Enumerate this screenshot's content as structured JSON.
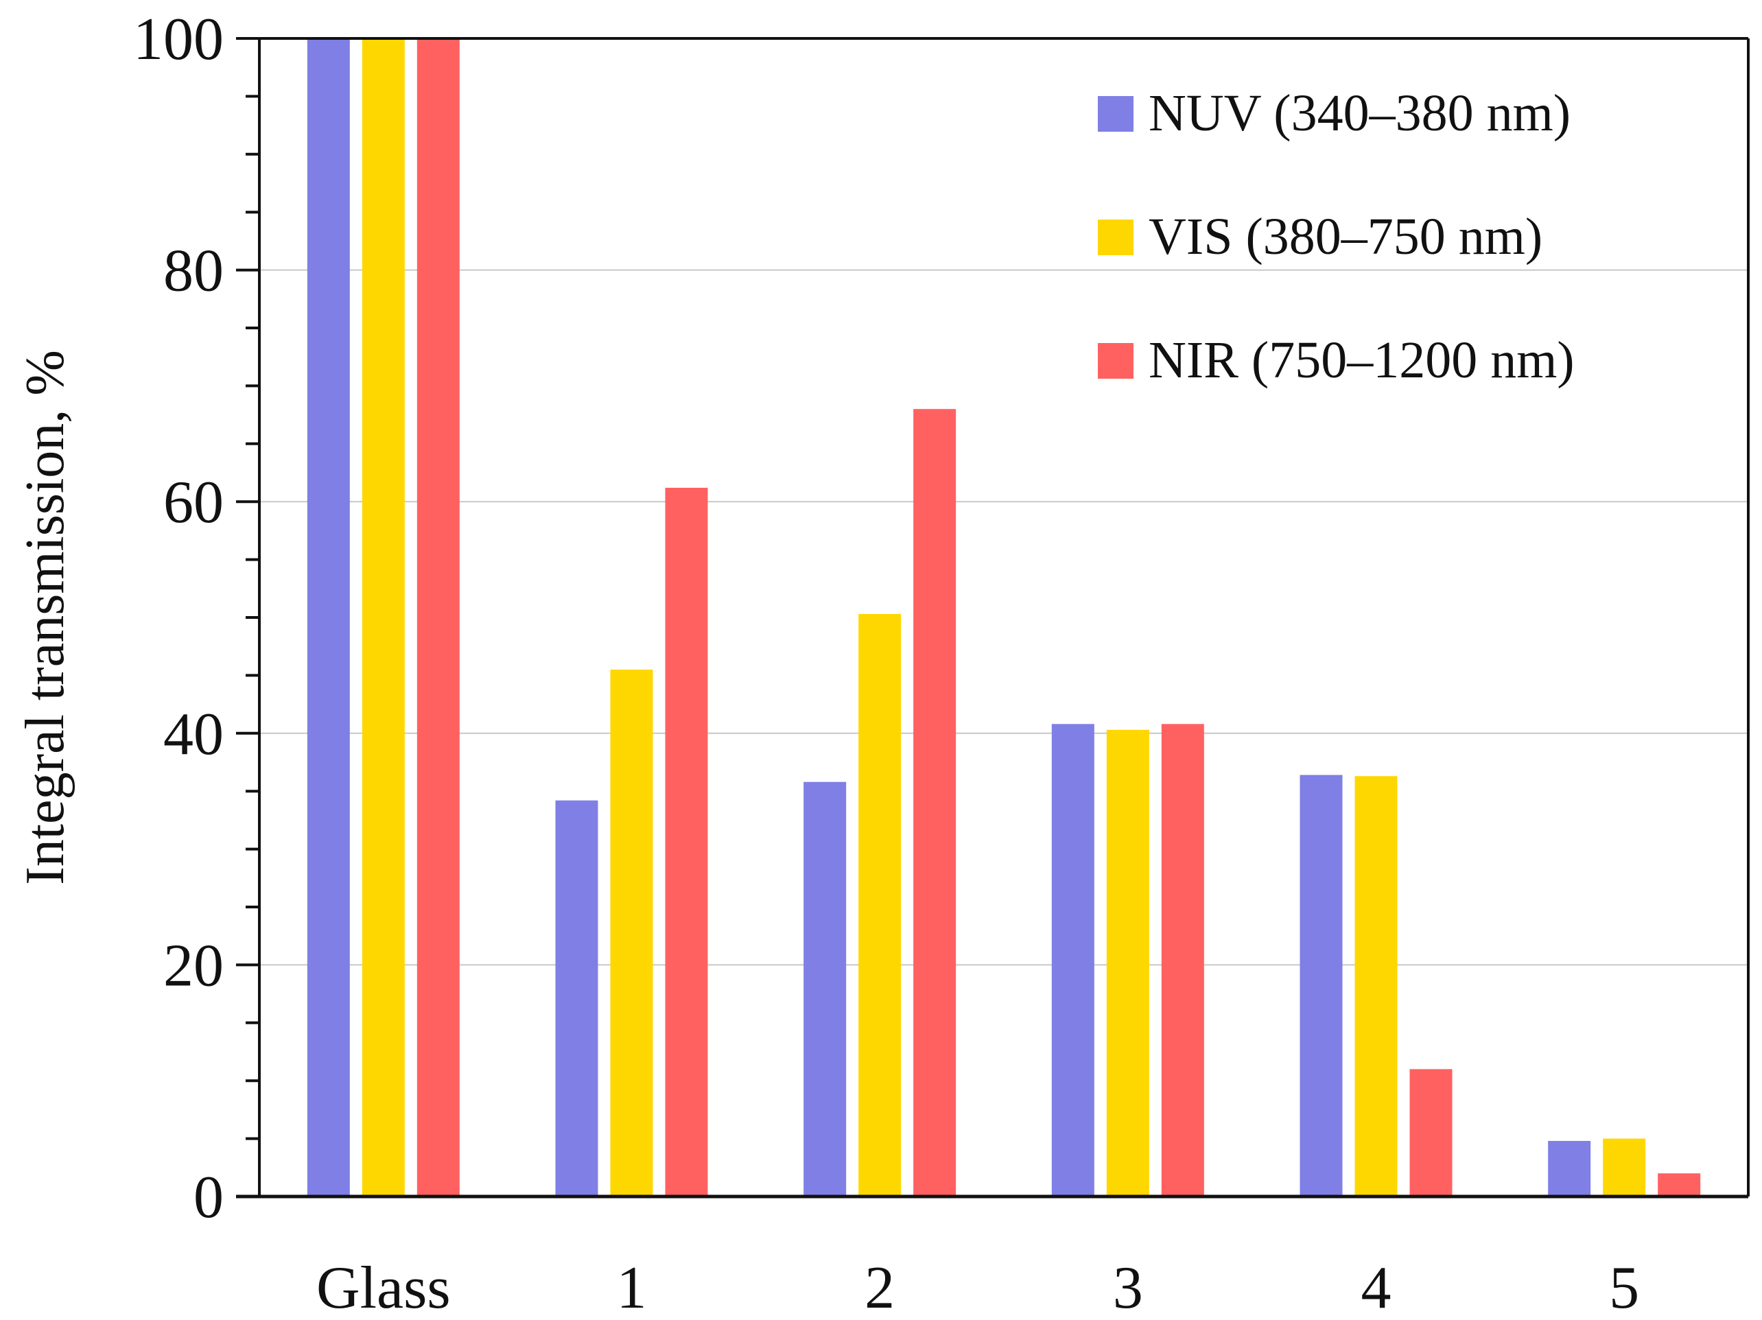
{
  "chart_data": {
    "type": "bar",
    "title": "",
    "xlabel": "",
    "ylabel": "Integral transmission, %",
    "ylim": [
      0,
      100
    ],
    "yticks": [
      "0",
      "20",
      "40",
      "60",
      "80",
      "100"
    ],
    "grid": true,
    "legend_position": "top-right",
    "categories": [
      "Glass",
      "1",
      "2",
      "3",
      "4",
      "5"
    ],
    "series": [
      {
        "name": "NUV (340–380 nm)",
        "color": "#7f7fe6",
        "values": [
          100,
          34.2,
          35.8,
          40.8,
          36.4,
          4.8
        ]
      },
      {
        "name": "VIS (380–750 nm)",
        "color": "#ffd700",
        "values": [
          100,
          45.5,
          50.3,
          40.3,
          36.3,
          5.0
        ]
      },
      {
        "name": "NIR (750–1200 nm)",
        "color": "#ff6161",
        "values": [
          100,
          61.2,
          68.0,
          40.8,
          11.0,
          2.0
        ]
      }
    ]
  }
}
